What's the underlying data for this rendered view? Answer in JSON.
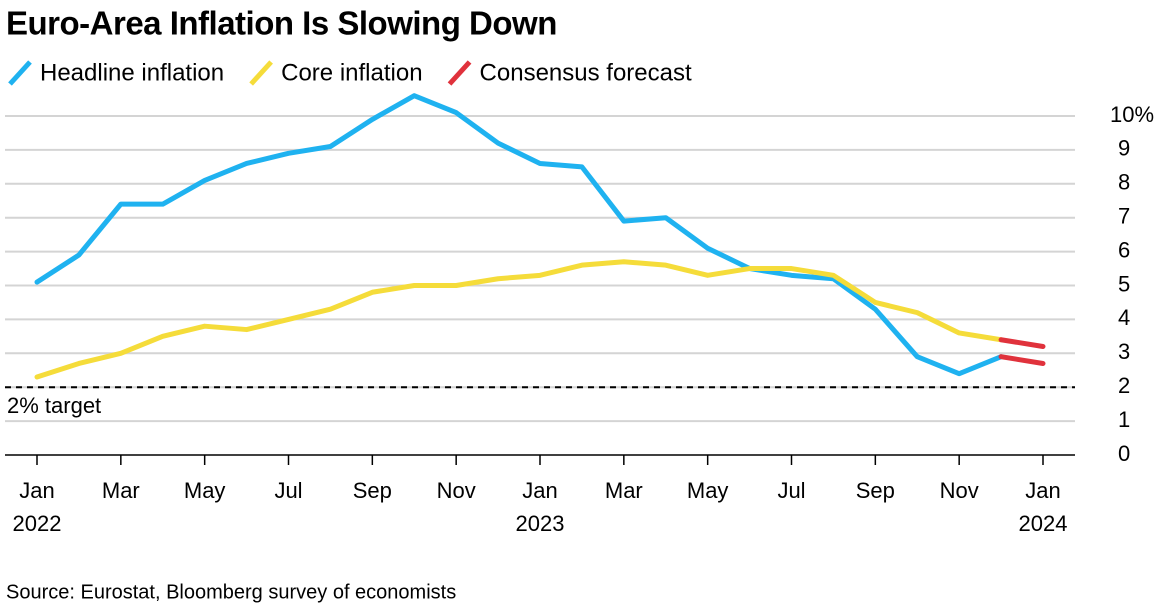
{
  "chart_data": {
    "type": "line",
    "title": "Euro-Area Inflation Is Slowing Down",
    "source": "Source: Eurostat, Bloomberg survey of economists",
    "categories": [
      "Jan",
      null,
      "Mar",
      null,
      "May",
      null,
      "Jul",
      null,
      "Sep",
      null,
      "Nov",
      null,
      "Jan",
      null,
      "Mar",
      null,
      "May",
      null,
      "Jul",
      null,
      "Sep",
      null,
      "Nov",
      null,
      "Jan"
    ],
    "category_years": [
      "2022",
      null,
      null,
      null,
      null,
      null,
      null,
      null,
      null,
      null,
      null,
      null,
      "2023",
      null,
      null,
      null,
      null,
      null,
      null,
      null,
      null,
      null,
      null,
      null,
      "2024"
    ],
    "series": [
      {
        "name": "Headline inflation",
        "color": "#1fb2f0",
        "values": [
          5.1,
          5.9,
          7.4,
          7.4,
          8.1,
          8.6,
          8.9,
          9.1,
          9.9,
          10.6,
          10.1,
          9.2,
          8.6,
          8.5,
          6.9,
          7.0,
          6.1,
          5.5,
          5.3,
          5.2,
          4.3,
          2.9,
          2.4,
          2.9,
          null
        ]
      },
      {
        "name": "Core inflation",
        "color": "#f5dc3a",
        "values": [
          2.3,
          2.7,
          3.0,
          3.5,
          3.8,
          3.7,
          4.0,
          4.3,
          4.8,
          5.0,
          5.0,
          5.2,
          5.3,
          5.6,
          5.7,
          5.6,
          5.3,
          5.5,
          5.5,
          5.3,
          4.5,
          4.2,
          3.6,
          3.4,
          null
        ]
      }
    ],
    "forecast": {
      "name": "Consensus forecast",
      "color": "#e0323c",
      "values": [
        2.7,
        3.2
      ]
    },
    "ylim": [
      0,
      10.6
    ],
    "yticks": [
      0,
      1,
      2,
      3,
      4,
      5,
      6,
      7,
      8,
      9,
      {
        "value": 10,
        "label": "10%"
      }
    ],
    "grid": true,
    "target_line": {
      "value": 2,
      "label": "2% target"
    }
  }
}
